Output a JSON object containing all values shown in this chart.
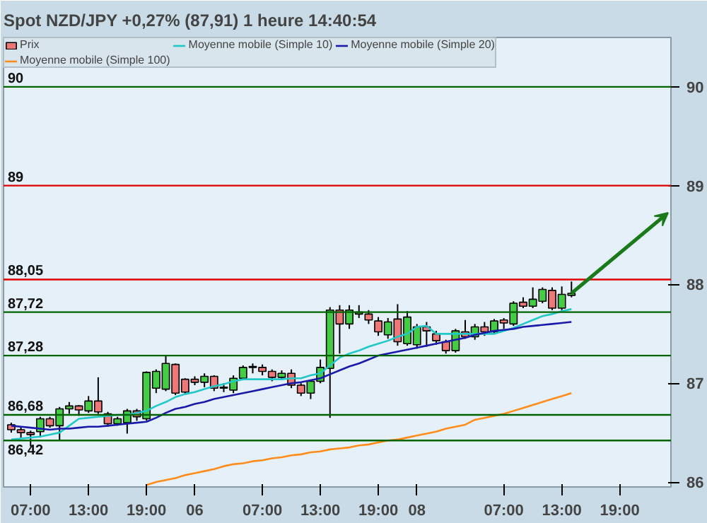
{
  "chart_data": {
    "type": "candlestick",
    "title": "Spot NZD/JPY   +0,27% (87,91)   1 heure   14:40:54",
    "categories": [
      null,
      null,
      "07:00",
      null,
      null,
      null,
      null,
      null,
      "13:00",
      null,
      null,
      null,
      null,
      null,
      "19:00",
      null,
      null,
      null,
      null,
      "06",
      null,
      null,
      null,
      null,
      null,
      null,
      "07:00",
      null,
      null,
      null,
      null,
      null,
      "13:00",
      null,
      null,
      null,
      null,
      null,
      "19:00",
      null,
      null,
      null,
      "08",
      null,
      null,
      null,
      null,
      null,
      null,
      null,
      null,
      "07:00",
      null,
      null,
      null,
      null,
      null,
      "13:00",
      null,
      null,
      null,
      null,
      null,
      "19:00",
      null,
      null,
      null,
      null,
      null
    ],
    "ylim": [
      85.95,
      90.5
    ],
    "yticks": [
      86,
      87,
      88,
      89,
      90
    ],
    "legend": "top left",
    "series": [
      {
        "name": "Prix",
        "ohlc": [
          [
            86.58,
            86.6,
            86.5,
            86.53
          ],
          [
            86.53,
            86.56,
            86.45,
            86.5
          ],
          [
            86.5,
            86.52,
            86.36,
            86.48
          ],
          [
            86.51,
            86.66,
            86.45,
            86.64
          ],
          [
            86.64,
            86.66,
            86.55,
            86.57
          ],
          [
            86.57,
            86.76,
            86.42,
            86.74
          ],
          [
            86.74,
            86.81,
            86.69,
            86.77
          ],
          [
            86.77,
            86.78,
            86.67,
            86.73
          ],
          [
            86.72,
            86.87,
            86.7,
            86.82
          ],
          [
            86.82,
            87.06,
            86.69,
            86.71
          ],
          [
            86.69,
            86.71,
            86.56,
            86.59
          ],
          [
            86.59,
            86.66,
            86.57,
            86.64
          ],
          [
            86.6,
            86.74,
            86.49,
            86.72
          ],
          [
            86.72,
            86.74,
            86.62,
            86.66
          ],
          [
            86.64,
            87.12,
            86.62,
            87.11
          ],
          [
            86.95,
            87.14,
            86.9,
            87.12
          ],
          [
            86.94,
            87.28,
            86.92,
            87.2
          ],
          [
            87.19,
            87.2,
            86.88,
            86.9
          ],
          [
            87.04,
            87.05,
            86.88,
            86.91
          ],
          [
            87.04,
            87.07,
            86.98,
            87.01
          ],
          [
            87.01,
            87.1,
            86.96,
            87.07
          ],
          [
            87.07,
            87.08,
            86.92,
            86.95
          ],
          [
            86.95,
            87.0,
            86.91,
            86.96
          ],
          [
            86.93,
            87.08,
            86.9,
            87.05
          ],
          [
            87.05,
            87.18,
            87.04,
            87.16
          ],
          [
            87.16,
            87.2,
            87.1,
            87.17
          ],
          [
            87.16,
            87.19,
            87.08,
            87.12
          ],
          [
            87.12,
            87.14,
            87.02,
            87.06
          ],
          [
            87.06,
            87.13,
            87.03,
            87.1
          ],
          [
            87.1,
            87.14,
            86.95,
            86.98
          ],
          [
            86.98,
            87.0,
            86.87,
            86.9
          ],
          [
            86.9,
            87.03,
            86.84,
            87.02
          ],
          [
            87.02,
            87.24,
            87.0,
            87.16
          ],
          [
            87.15,
            87.77,
            86.65,
            87.74
          ],
          [
            87.74,
            87.79,
            87.3,
            87.6
          ],
          [
            87.6,
            87.79,
            87.55,
            87.74
          ],
          [
            87.7,
            87.79,
            87.66,
            87.72
          ],
          [
            87.7,
            87.74,
            87.6,
            87.64
          ],
          [
            87.63,
            87.67,
            87.48,
            87.52
          ],
          [
            87.49,
            87.66,
            87.45,
            87.62
          ],
          [
            87.65,
            87.8,
            87.38,
            87.42
          ],
          [
            87.4,
            87.73,
            87.38,
            87.67
          ],
          [
            87.39,
            87.6,
            87.35,
            87.57
          ],
          [
            87.57,
            87.62,
            87.37,
            87.53
          ],
          [
            87.5,
            87.53,
            87.39,
            87.43
          ],
          [
            87.42,
            87.44,
            87.3,
            87.33
          ],
          [
            87.33,
            87.55,
            87.31,
            87.53
          ],
          [
            87.52,
            87.64,
            87.45,
            87.47
          ],
          [
            87.47,
            87.6,
            87.44,
            87.57
          ],
          [
            87.57,
            87.62,
            87.48,
            87.52
          ],
          [
            87.52,
            87.65,
            87.5,
            87.63
          ],
          [
            87.64,
            87.66,
            87.55,
            87.61
          ],
          [
            87.6,
            87.83,
            87.58,
            87.81
          ],
          [
            87.82,
            87.87,
            87.76,
            87.78
          ],
          [
            87.78,
            87.97,
            87.76,
            87.85
          ],
          [
            87.83,
            87.97,
            87.81,
            87.95
          ],
          [
            87.94,
            87.97,
            87.74,
            87.76
          ],
          [
            87.76,
            87.98,
            87.74,
            87.9
          ],
          [
            87.89,
            88.03,
            87.87,
            87.91
          ],
          null,
          null,
          null,
          null,
          null,
          null,
          null,
          null,
          null,
          null
        ],
        "colors": [
          "#ee7777",
          "#ee7777",
          "#ee7777",
          "#44cc44",
          "#ee7777",
          "#44cc44",
          "#44cc44",
          "#ee7777",
          "#44cc44",
          "#ee7777",
          "#ee7777",
          "#44cc44",
          "#44cc44",
          "#ee7777",
          "#44cc44",
          "#44cc44",
          "#44cc44",
          "#ee7777",
          "#ee7777",
          "#ee7777",
          "#44cc44",
          "#ee7777",
          "#44cc44",
          "#44cc44",
          "#44cc44",
          "#44cc44",
          "#ee7777",
          "#ee7777",
          "#44cc44",
          "#ee7777",
          "#ee7777",
          "#44cc44",
          "#44cc44",
          "#44cc44",
          "#ee7777",
          "#44cc44",
          "#44cc44",
          "#ee7777",
          "#ee7777",
          "#44cc44",
          "#ee7777",
          "#44cc44",
          "#44cc44",
          "#ee7777",
          "#ee7777",
          "#ee7777",
          "#44cc44",
          "#ee7777",
          "#44cc44",
          "#ee7777",
          "#44cc44",
          "#ee7777",
          "#44cc44",
          "#ee7777",
          "#44cc44",
          "#44cc44",
          "#ee7777",
          "#44cc44",
          "#44cc44",
          null,
          null,
          null,
          null,
          null,
          null,
          null,
          null,
          null,
          null
        ]
      },
      {
        "type": "line",
        "name": "Moyenne mobile (Simple 10)",
        "color": "#22c8c8",
        "values": [
          86.43,
          86.44,
          86.45,
          86.46,
          86.48,
          86.5,
          86.57,
          86.64,
          86.65,
          86.66,
          86.67,
          86.68,
          86.68,
          86.7,
          86.72,
          86.77,
          86.81,
          86.86,
          86.89,
          86.91,
          86.94,
          86.97,
          86.99,
          87.02,
          87.04,
          87.04,
          87.04,
          87.04,
          87.04,
          87.05,
          87.05,
          87.08,
          87.1,
          87.18,
          87.26,
          87.3,
          87.33,
          87.37,
          87.4,
          87.43,
          87.47,
          87.5,
          87.57,
          87.58,
          87.5,
          87.5,
          87.5,
          87.5,
          87.5,
          87.5,
          87.5,
          87.53,
          87.56,
          87.6,
          87.64,
          87.68,
          87.7,
          87.73,
          87.75,
          null,
          null,
          null,
          null,
          null,
          null,
          null,
          null,
          null,
          null
        ]
      },
      {
        "type": "line",
        "name": "Moyenne mobile (Simple 20)",
        "color": "#1a1aaa",
        "values": [
          86.57,
          86.56,
          86.55,
          86.54,
          86.53,
          86.54,
          86.54,
          86.55,
          86.56,
          86.56,
          86.57,
          86.58,
          86.59,
          86.6,
          86.61,
          86.65,
          86.7,
          86.74,
          86.76,
          86.79,
          86.81,
          86.84,
          86.86,
          86.88,
          86.9,
          86.92,
          86.94,
          86.96,
          86.98,
          87.0,
          87.01,
          87.03,
          87.05,
          87.09,
          87.13,
          87.17,
          87.2,
          87.24,
          87.28,
          87.3,
          87.32,
          87.34,
          87.36,
          87.38,
          87.4,
          87.42,
          87.44,
          87.46,
          87.49,
          87.51,
          87.53,
          87.54,
          87.55,
          87.57,
          87.58,
          87.59,
          87.6,
          87.61,
          87.62,
          null,
          null,
          null,
          null,
          null,
          null,
          null,
          null,
          null,
          null
        ]
      },
      {
        "type": "line",
        "name": "Moyenne mobile (Simple 100)",
        "color": "#ff8c1a",
        "values": [
          null,
          null,
          null,
          null,
          null,
          null,
          null,
          null,
          null,
          null,
          null,
          null,
          null,
          null,
          85.97,
          86.0,
          86.02,
          86.04,
          86.07,
          86.09,
          86.11,
          86.13,
          86.16,
          86.18,
          86.19,
          86.21,
          86.22,
          86.24,
          86.25,
          86.27,
          86.28,
          86.3,
          86.31,
          86.33,
          86.34,
          86.35,
          86.37,
          86.38,
          86.4,
          86.42,
          86.43,
          86.45,
          86.47,
          86.49,
          86.51,
          86.54,
          86.56,
          86.58,
          86.63,
          86.65,
          86.67,
          86.69,
          86.72,
          86.75,
          86.78,
          86.81,
          86.84,
          86.87,
          86.9,
          null,
          null,
          null,
          null,
          null,
          null,
          null,
          null,
          null,
          null
        ]
      }
    ],
    "ref_lines": [
      {
        "axis": "y",
        "value": 90,
        "label": "90",
        "color": "#006400"
      },
      {
        "axis": "y",
        "value": 89,
        "label": "89",
        "color": "#e00000"
      },
      {
        "axis": "y",
        "value": 88.05,
        "label": "88,05",
        "color": "#e00000"
      },
      {
        "axis": "y",
        "value": 87.72,
        "label": "87,72",
        "color": "#006400"
      },
      {
        "axis": "y",
        "value": 87.28,
        "label": "87,28",
        "color": "#006400"
      },
      {
        "axis": "y",
        "value": 86.68,
        "label": "86,68",
        "color": "#006400"
      },
      {
        "axis": "y",
        "value": 86.42,
        "label": "86,42",
        "color": "#006400"
      }
    ]
  }
}
